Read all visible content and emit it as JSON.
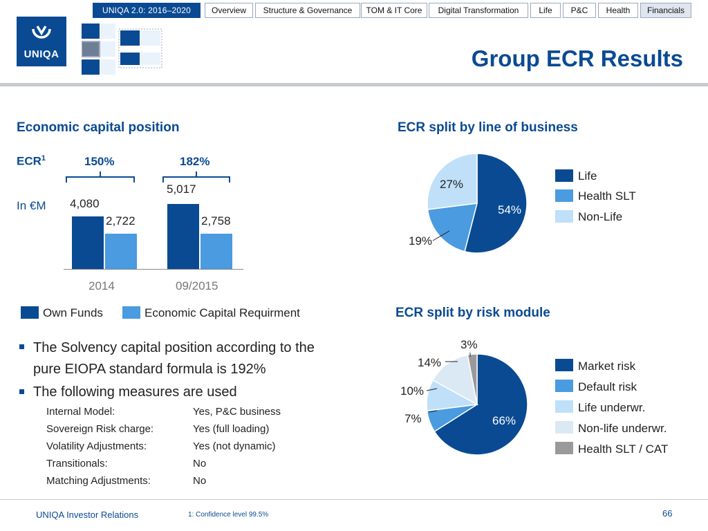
{
  "nav": {
    "brand": "UNIQA 2.0: 2016–2020",
    "tabs": [
      "Overview",
      "Structure & Governance",
      "TOM & IT Core",
      "Digital Transformation",
      "Life",
      "P&C",
      "Health",
      "Financials"
    ],
    "active_tab": "Financials"
  },
  "logo": {
    "text": "UNIQA"
  },
  "page_title": "Group ECR Results",
  "left": {
    "heading": "Economic capital position",
    "ecr_label": "ECR",
    "ecr_footnote_mark": "1",
    "unit_label": "In €M",
    "legend": [
      {
        "label": "Own Funds",
        "color": "#0a4a92"
      },
      {
        "label": "Economic Capital Requirment",
        "color": "#4a9be0"
      }
    ]
  },
  "chart_data": [
    {
      "type": "bar",
      "title": "Economic capital position",
      "ylabel": "In €M",
      "categories": [
        "2014",
        "09/2015"
      ],
      "series": [
        {
          "name": "Own Funds",
          "values": [
            4080,
            5017
          ]
        },
        {
          "name": "Economic Capital Requirment",
          "values": [
            2722,
            2758
          ]
        }
      ],
      "value_labels": [
        [
          "4,080",
          "5,017"
        ],
        [
          "2,722",
          "2,758"
        ]
      ],
      "ecr_ratios": [
        "150%",
        "182%"
      ],
      "ylim": [
        0,
        5900
      ]
    },
    {
      "type": "pie",
      "title": "ECR split by line of business",
      "labels": [
        "Life",
        "Health SLT",
        "Non-Life"
      ],
      "values": [
        54,
        19,
        27
      ],
      "value_labels": [
        "54%",
        "19%",
        "27%"
      ],
      "colors": [
        "#0a4a92",
        "#4a9be0",
        "#bfe0f8"
      ],
      "label_colors": [
        "#ffffff",
        "#222222",
        "#222222"
      ]
    },
    {
      "type": "pie",
      "title": "ECR split by risk module",
      "labels": [
        "Market risk",
        "Default risk",
        "Life underwr.",
        "Non-life underwr.",
        "Health SLT / CAT"
      ],
      "values": [
        66,
        7,
        10,
        14,
        3
      ],
      "value_labels": [
        "66%",
        "7%",
        "10%",
        "14%",
        "3%"
      ],
      "colors": [
        "#0a4a92",
        "#4a9be0",
        "#bfe0f8",
        "#dbe9f5",
        "#9a9a9a"
      ],
      "label_colors": [
        "#ffffff",
        "#222222",
        "#222222",
        "#222222",
        "#222222"
      ]
    }
  ],
  "bullets": [
    "The Solvency capital position according to the pure EIOPA standard formula is 192%",
    "The following measures are used"
  ],
  "measures": [
    {
      "label": "Internal Model:",
      "value": "Yes, P&C business"
    },
    {
      "label": "Sovereign  Risk charge:",
      "value": "Yes (full loading)"
    },
    {
      "label": "Volatility Adjustments:",
      "value": "Yes (not dynamic)"
    },
    {
      "label": "Transitionals:",
      "value": "No"
    },
    {
      "label": "Matching Adjustments:",
      "value": "No"
    }
  ],
  "footer": {
    "left": "UNIQA Investor Relations",
    "footnote": "1: Confidence level 99.5%",
    "page": "66"
  }
}
